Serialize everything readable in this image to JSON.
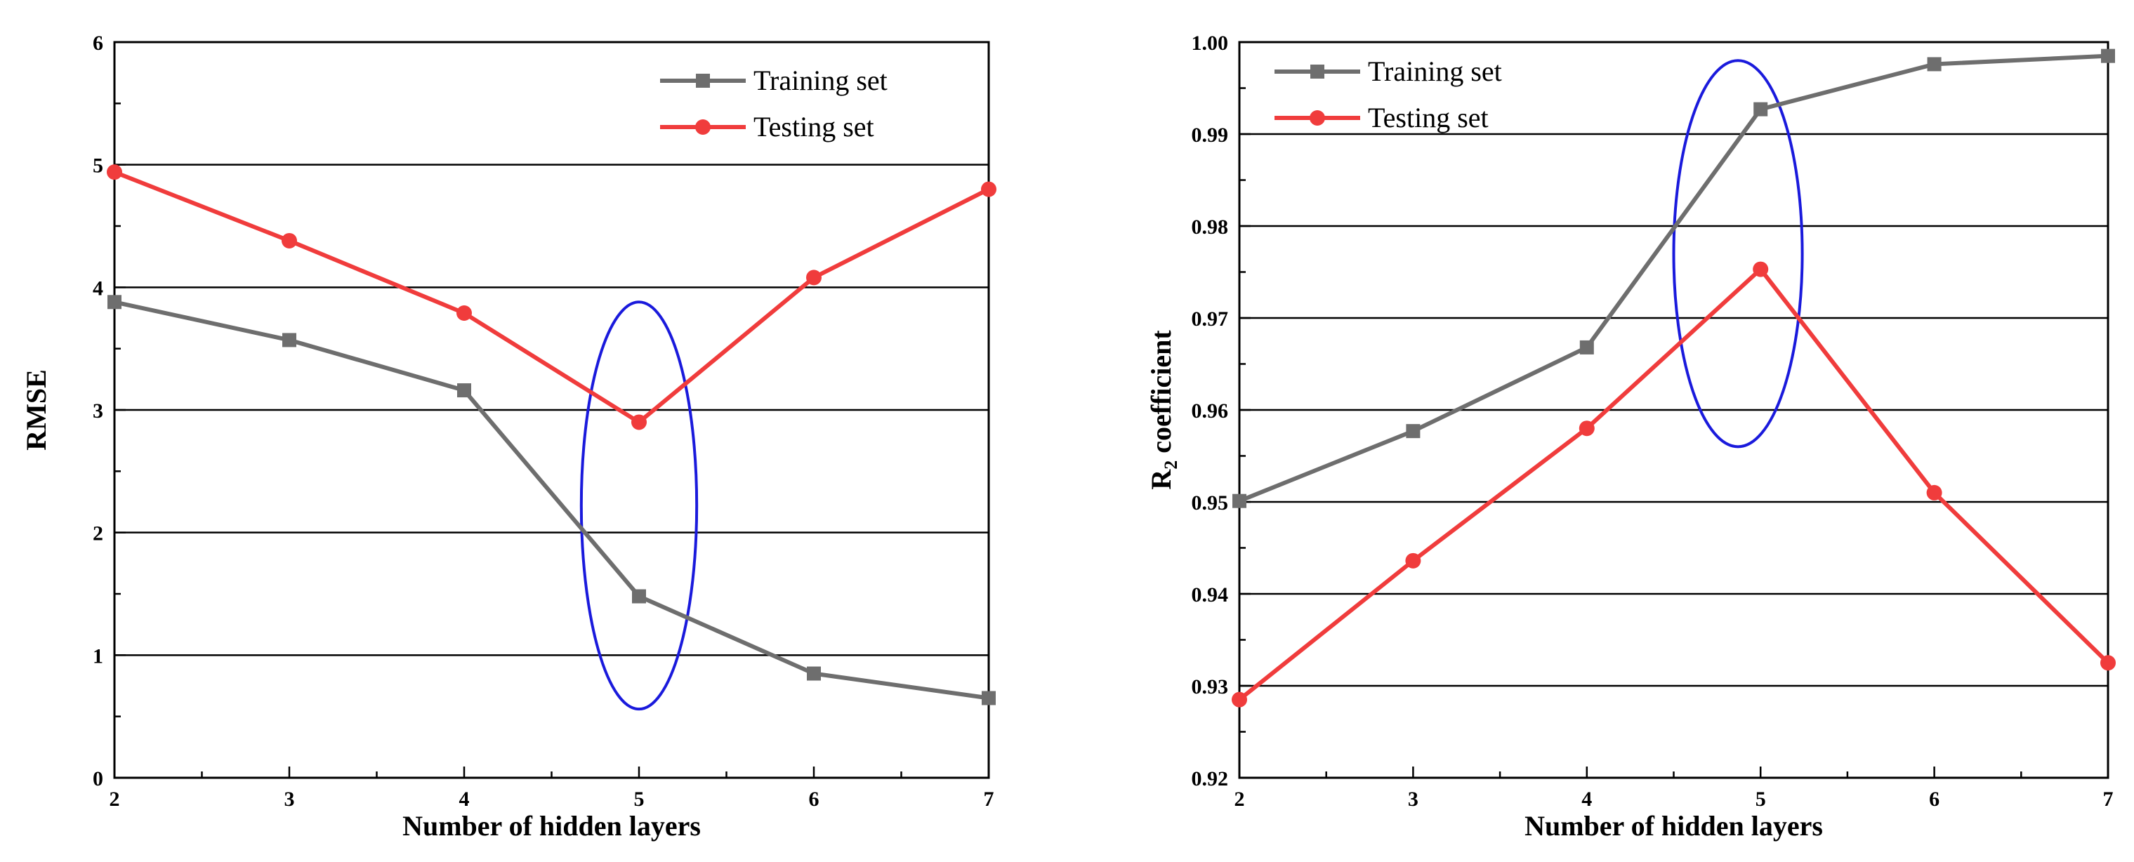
{
  "chart_data": [
    {
      "type": "line",
      "xlabel": "Number of hidden layers",
      "ylabel": "RMSE",
      "ylabel_sub": "",
      "x": [
        2,
        3,
        4,
        5,
        6,
        7
      ],
      "xlim": [
        2,
        7
      ],
      "ylim": [
        0,
        6
      ],
      "xticks": [
        "2",
        "3",
        "4",
        "5",
        "6",
        "7"
      ],
      "yticks": [
        "0",
        "1",
        "2",
        "3",
        "4",
        "5",
        "6"
      ],
      "grid": "horizontal",
      "legend_position": "top-right",
      "series": [
        {
          "name": "Training set",
          "marker": "square",
          "color": "#6e6e6e",
          "values": [
            3.88,
            3.57,
            3.16,
            1.48,
            0.85,
            0.65
          ]
        },
        {
          "name": "Testing set",
          "marker": "circle",
          "color": "#f03c3c",
          "values": [
            4.94,
            4.38,
            3.79,
            2.9,
            4.08,
            4.8
          ]
        }
      ],
      "annotation": {
        "shape": "ellipse",
        "color": "#1a1adc",
        "center_x": 5.0,
        "center_y": 2.22,
        "half_width_x": 0.33,
        "half_height_y": 1.66
      }
    },
    {
      "type": "line",
      "xlabel": "Number of hidden layers",
      "ylabel": "R",
      "ylabel_sub": "2",
      "ylabel_rest": " coefficient",
      "x": [
        2,
        3,
        4,
        5,
        6,
        7
      ],
      "xlim": [
        2,
        7
      ],
      "ylim": [
        0.92,
        1.0
      ],
      "xticks": [
        "2",
        "3",
        "4",
        "5",
        "6",
        "7"
      ],
      "yticks": [
        "0.92",
        "0.93",
        "0.94",
        "0.95",
        "0.96",
        "0.97",
        "0.98",
        "0.99",
        "1.00"
      ],
      "grid": "horizontal",
      "legend_position": "top-left",
      "series": [
        {
          "name": "Training set",
          "marker": "square",
          "color": "#6e6e6e",
          "values": [
            0.9501,
            0.9577,
            0.9668,
            0.9927,
            0.9976,
            0.9985
          ]
        },
        {
          "name": "Testing set",
          "marker": "circle",
          "color": "#f03c3c",
          "values": [
            0.9285,
            0.9436,
            0.958,
            0.9753,
            0.951,
            0.9325
          ]
        }
      ],
      "annotation": {
        "shape": "ellipse",
        "color": "#1a1adc",
        "center_x": 4.87,
        "center_y": 0.977,
        "half_width_x": 0.37,
        "half_height_y": 0.021
      }
    }
  ]
}
